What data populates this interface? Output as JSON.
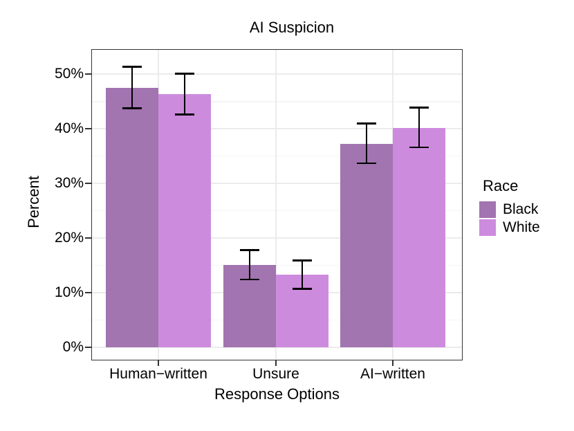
{
  "chart_data": {
    "type": "bar",
    "title": "AI Suspicion",
    "xlabel": "Response Options",
    "ylabel": "Percent",
    "categories": [
      "Human−written",
      "Unsure",
      "AI−written"
    ],
    "series": [
      {
        "name": "Black",
        "color": "#A274B0",
        "values": [
          47.5,
          15.1,
          37.3
        ],
        "ci_low": [
          43.8,
          12.4,
          33.7
        ],
        "ci_high": [
          51.4,
          17.8,
          41.0
        ]
      },
      {
        "name": "White",
        "color": "#CD8BDE",
        "values": [
          46.4,
          13.3,
          40.2
        ],
        "ci_low": [
          42.6,
          10.7,
          36.6
        ],
        "ci_high": [
          50.1,
          15.9,
          43.9
        ]
      }
    ],
    "y_axis": {
      "ticks": [
        0,
        10,
        20,
        30,
        40,
        50
      ],
      "tick_labels": [
        "0%",
        "10%",
        "20%",
        "30%",
        "40%",
        "50%"
      ],
      "minor_ticks": [
        5,
        15,
        25,
        35,
        45
      ],
      "range": [
        -2.4,
        54.6
      ]
    },
    "legend": {
      "title": "Race",
      "position": "right"
    },
    "grid": true,
    "error_bars": true,
    "colors": {
      "grid_major": "#EBEBEB",
      "grid_minor": "#F5F5F5",
      "panel_border": "#333333",
      "error_bar": "#000000",
      "tick_mark": "#333333",
      "background": "#FFFFFF"
    }
  }
}
